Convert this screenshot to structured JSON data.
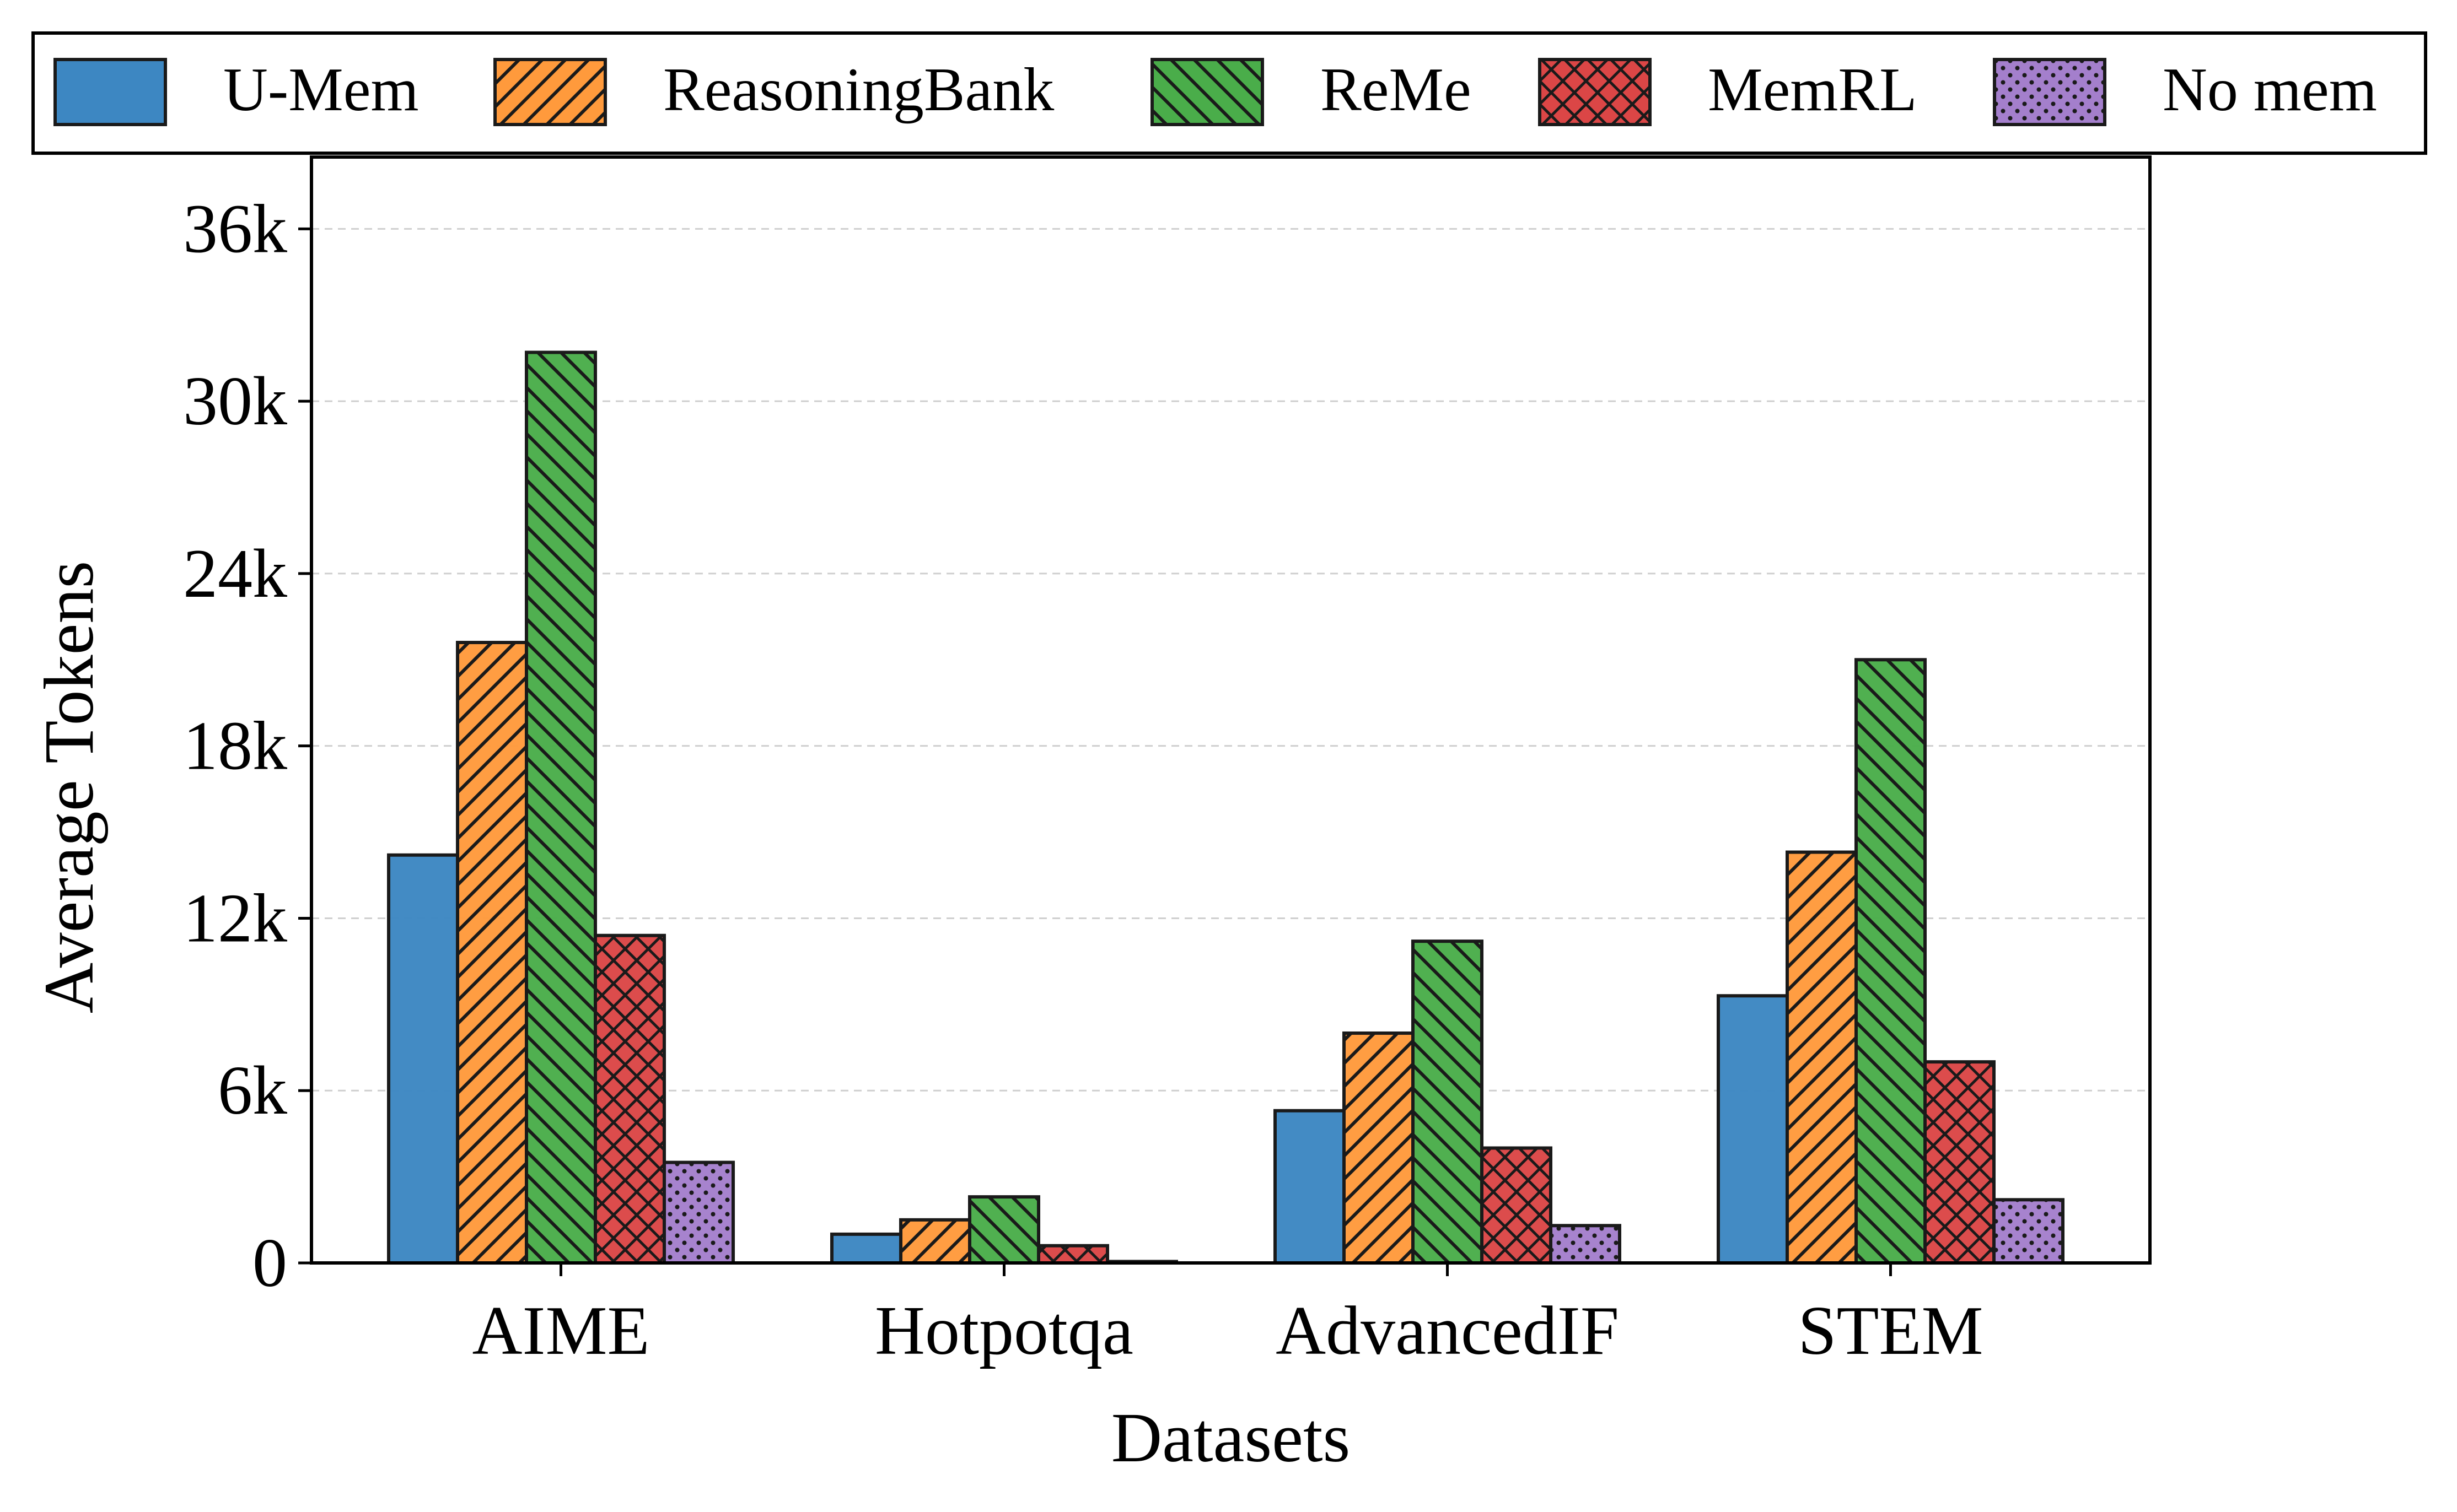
{
  "chart_data": {
    "type": "bar",
    "title": "",
    "xlabel": "Datasets",
    "ylabel": "Average Tokens",
    "categories": [
      "AIME",
      "Hotpotqa",
      "AdvancedIF",
      "STEM"
    ],
    "ylim": [
      0,
      38500
    ],
    "yticks": [
      0,
      6000,
      12000,
      18000,
      24000,
      30000,
      36000
    ],
    "ytick_labels": [
      "0",
      "6k",
      "12k",
      "18k",
      "24k",
      "30k",
      "36k"
    ],
    "grid": "horizontal dashed",
    "legend_position": "top",
    "series": [
      {
        "name": "U-Mem",
        "color": "#3d87c2",
        "pattern": "solid",
        "values": [
          14200,
          1000,
          5300,
          9300
        ]
      },
      {
        "name": "ReasoningBank",
        "color": "#ff9a3c",
        "pattern": "diagonal-forward",
        "values": [
          21600,
          1500,
          8000,
          14300
        ]
      },
      {
        "name": "ReMe",
        "color": "#4aad4a",
        "pattern": "diagonal-back",
        "values": [
          31700,
          2300,
          11200,
          21000
        ]
      },
      {
        "name": "MemRL",
        "color": "#db4646",
        "pattern": "crosshatch",
        "values": [
          11400,
          600,
          4000,
          7000
        ]
      },
      {
        "name": "No mem",
        "color": "#a47fcc",
        "pattern": "dots",
        "values": [
          3500,
          50,
          1300,
          2200
        ]
      }
    ]
  }
}
